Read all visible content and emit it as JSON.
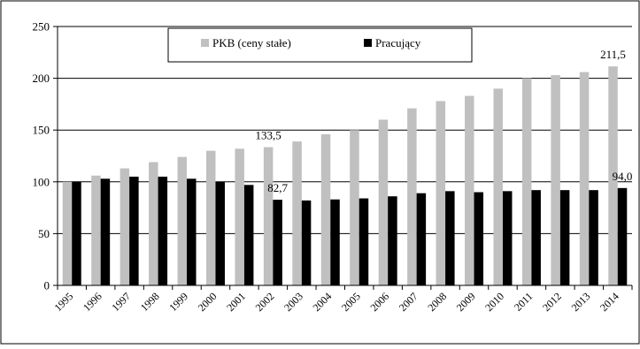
{
  "chart_data": {
    "type": "bar",
    "title": "",
    "xlabel": "",
    "ylabel": "",
    "ylim": [
      0,
      250
    ],
    "yticks": [
      0,
      50,
      100,
      150,
      200,
      250
    ],
    "grid": true,
    "legend_position": "top-center",
    "categories": [
      "1995",
      "1996",
      "1997",
      "1998",
      "1999",
      "2000",
      "2001",
      "2002",
      "2003",
      "2004",
      "2005",
      "2006",
      "2007",
      "2008",
      "2009",
      "2010",
      "2011",
      "2012",
      "2013",
      "2014"
    ],
    "series": [
      {
        "name": "PKB (ceny stałe)",
        "color": "#c0c0c0",
        "values": [
          100,
          106,
          113,
          119,
          124,
          130,
          132,
          133.5,
          139,
          146,
          150,
          160,
          171,
          178,
          183,
          190,
          200,
          203,
          206,
          211.5
        ]
      },
      {
        "name": "Pracujący",
        "color": "#000000",
        "values": [
          100,
          103,
          105,
          105,
          103,
          100,
          97,
          82.7,
          82,
          83,
          84,
          86,
          89,
          91,
          90,
          91,
          92,
          92,
          92,
          94.0
        ]
      }
    ],
    "annotations": [
      {
        "series": 0,
        "index": 7,
        "text": "133,5"
      },
      {
        "series": 1,
        "index": 7,
        "text": "82,7"
      },
      {
        "series": 0,
        "index": 19,
        "text": "211,5"
      },
      {
        "series": 1,
        "index": 19,
        "text": "94,0"
      }
    ]
  }
}
